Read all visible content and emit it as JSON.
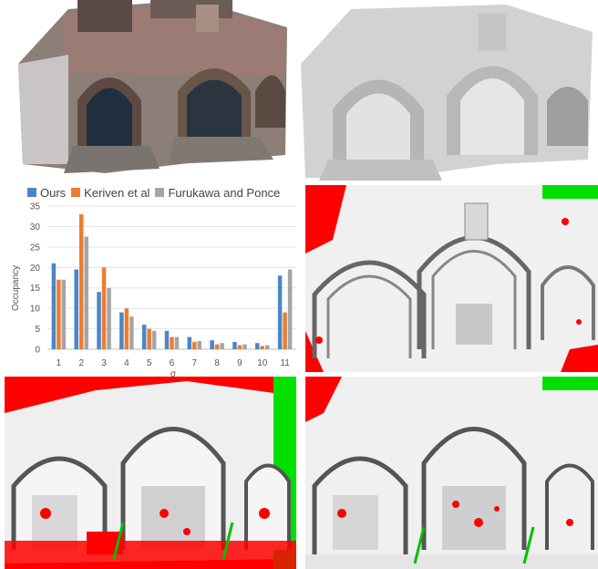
{
  "images": {
    "top_left": "textured-3d-reconstruction",
    "top_right": "shaded-3d-reconstruction",
    "mid_right": "error-map-ours",
    "bottom_left": "error-map-keriven",
    "bottom_right": "error-map-furukawa"
  },
  "chart_data": {
    "type": "bar",
    "title": "",
    "xlabel": "σ",
    "ylabel": "Occupancy",
    "categories": [
      "1",
      "2",
      "3",
      "4",
      "5",
      "6",
      "7",
      "8",
      "9",
      "10",
      "11"
    ],
    "ylim": [
      0,
      35
    ],
    "yticks": [
      0,
      5,
      10,
      15,
      20,
      25,
      30,
      35
    ],
    "grid": true,
    "legend_position": "top",
    "series": [
      {
        "name": "Ours",
        "color": "#4a86c5",
        "values": [
          21,
          19.5,
          14,
          9,
          6,
          4.5,
          3,
          2.2,
          1.8,
          1.5,
          18
        ]
      },
      {
        "name": "Keriven et al",
        "color": "#ed7d31",
        "values": [
          17,
          33,
          20,
          10,
          5,
          3,
          1.8,
          1.2,
          1,
          0.8,
          9
        ]
      },
      {
        "name": "Furukawa and Ponce",
        "color": "#a5a5a5",
        "values": [
          17,
          27.5,
          15,
          8,
          4.5,
          3,
          2,
          1.5,
          1.2,
          1,
          19.5
        ]
      }
    ]
  }
}
